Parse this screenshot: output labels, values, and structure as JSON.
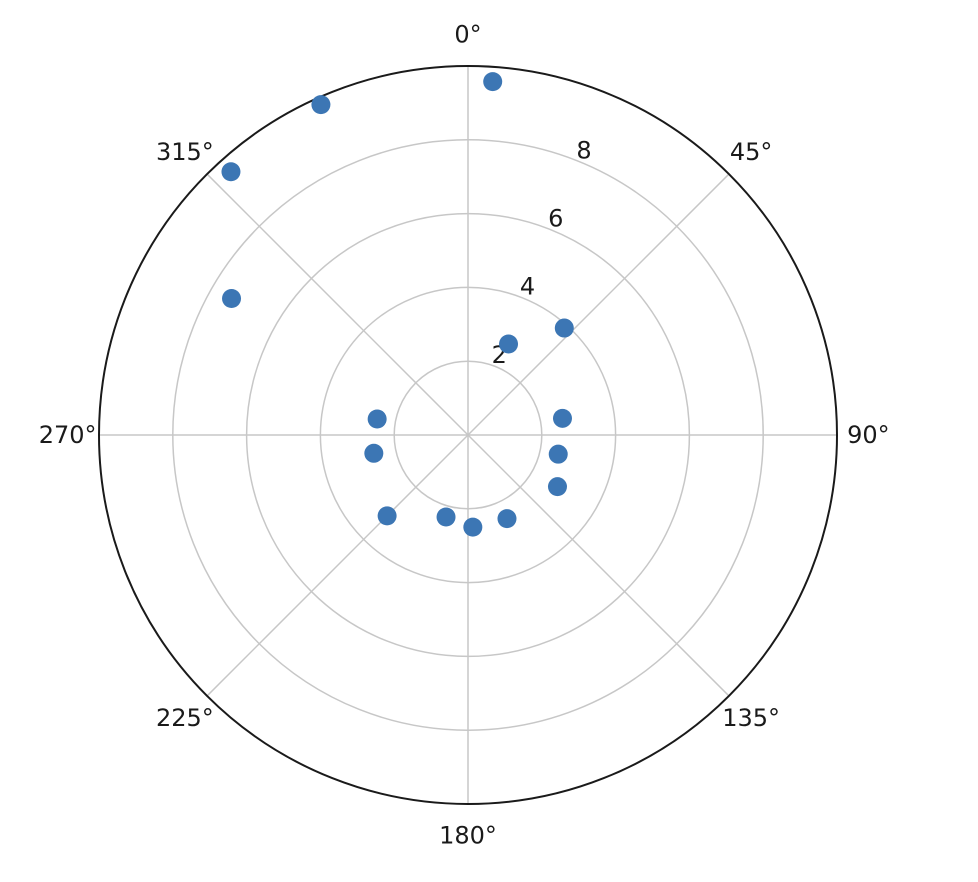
{
  "chart_data": {
    "type": "scatter",
    "projection": "polar",
    "theta_direction": "clockwise",
    "theta_zero": "top",
    "r_max": 10,
    "angle_ticks": [
      "0°",
      "45°",
      "90°",
      "135°",
      "180°",
      "225°",
      "270°",
      "315°"
    ],
    "radial_ticks": [
      2,
      4,
      6,
      8
    ],
    "radial_tick_labels": [
      "2",
      "4",
      "6",
      "8"
    ],
    "grid": true,
    "colors": {
      "points": "#3c76b4",
      "grid": "#c7c7c7",
      "frame": "#1a1a1a"
    },
    "points": [
      {
        "theta": 4,
        "r": 9.6
      },
      {
        "theta": 24,
        "r": 2.7
      },
      {
        "theta": 42,
        "r": 3.9
      },
      {
        "theta": 80,
        "r": 2.6
      },
      {
        "theta": 102,
        "r": 2.5
      },
      {
        "theta": 120,
        "r": 2.8
      },
      {
        "theta": 155,
        "r": 2.5
      },
      {
        "theta": 177,
        "r": 2.5
      },
      {
        "theta": 195,
        "r": 2.3
      },
      {
        "theta": 225,
        "r": 3.1
      },
      {
        "theta": 259,
        "r": 2.6
      },
      {
        "theta": 280,
        "r": 2.5
      },
      {
        "theta": 300,
        "r": 7.4
      },
      {
        "theta": 318,
        "r": 9.6
      },
      {
        "theta": 336,
        "r": 9.8
      }
    ]
  }
}
